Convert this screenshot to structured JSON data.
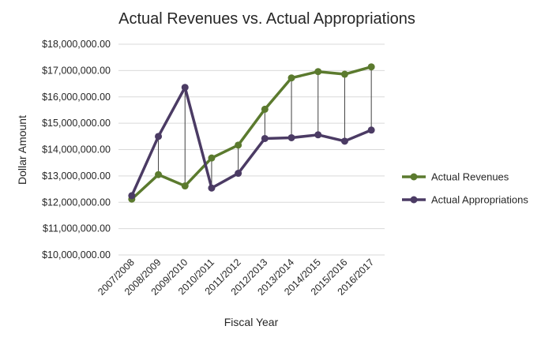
{
  "chart_data": {
    "type": "line",
    "title": "Actual Revenues vs. Actual Appropriations",
    "xlabel": "Fiscal Year",
    "ylabel": "Dollar Amount",
    "categories": [
      "2007/2008",
      "2008/2009",
      "2009/2010",
      "2010/2011",
      "2011/2012",
      "2012/2013",
      "2013/2014",
      "2014/2015",
      "2015/2016",
      "2016/2017"
    ],
    "ylim": [
      10000000,
      18000000
    ],
    "yticks": [
      "$10,000,000.00",
      "$11,000,000.00",
      "$12,000,000.00",
      "$13,000,000.00",
      "$14,000,000.00",
      "$15,000,000.00",
      "$16,000,000.00",
      "$17,000,000.00",
      "$18,000,000.00"
    ],
    "grid": true,
    "legend_position": "right",
    "drop_lines": true,
    "series": [
      {
        "name": "Actual Revenues",
        "color": "#5b7a2e",
        "values": [
          12120000,
          13050000,
          12620000,
          13680000,
          14170000,
          15530000,
          16720000,
          16960000,
          16860000,
          17140000
        ]
      },
      {
        "name": "Actual Appropriations",
        "color": "#4b3b64",
        "values": [
          12250000,
          14500000,
          16360000,
          12540000,
          13100000,
          14420000,
          14450000,
          14560000,
          14320000,
          14740000
        ]
      }
    ]
  }
}
